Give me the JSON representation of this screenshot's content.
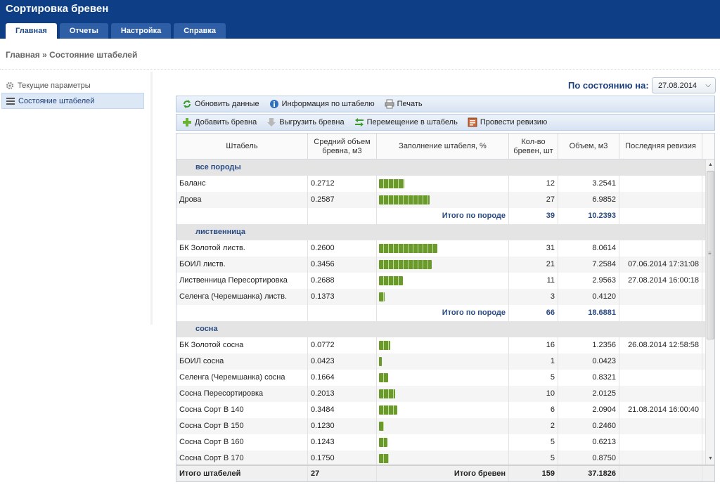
{
  "app": {
    "title": "Сортировка бревен"
  },
  "tabs": [
    {
      "label": "Главная",
      "active": true
    },
    {
      "label": "Отчеты",
      "active": false
    },
    {
      "label": "Настройка",
      "active": false
    },
    {
      "label": "Справка",
      "active": false
    }
  ],
  "breadcrumb": "Главная » Состояние штабелей",
  "sidebar": {
    "items": [
      {
        "label": "Текущие параметры",
        "icon": "gear-icon",
        "active": false
      },
      {
        "label": "Состояние штабелей",
        "icon": "list-icon",
        "active": true
      }
    ]
  },
  "date": {
    "label": "По состоянию на:",
    "value": "27.08.2014"
  },
  "toolbar1": {
    "refresh": "Обновить данные",
    "info": "Информация по штабелю",
    "print": "Печать"
  },
  "toolbar2": {
    "add": "Добавить бревна",
    "unload": "Выгрузить бревна",
    "move": "Перемещение в штабель",
    "audit": "Провести ревизию"
  },
  "columns": {
    "stack": "Штабель",
    "avg_volume": "Средний объем бревна, м3",
    "fill": "Заполнение штабеля, %",
    "count": "Кол-во бревен, шт",
    "volume": "Объем, м3",
    "last_audit": "Последняя ревизия"
  },
  "rows": [
    {
      "type": "group",
      "label": "все породы"
    },
    {
      "type": "data",
      "stack": "Баланс",
      "avg": "0.2712",
      "fill": 28,
      "count": "12",
      "volume": "3.2541",
      "audit": ""
    },
    {
      "type": "data",
      "stack": "Дрова",
      "avg": "0.2587",
      "fill": 55,
      "count": "27",
      "volume": "6.9852",
      "audit": ""
    },
    {
      "type": "subtotal",
      "label": "Итого по породе",
      "count": "39",
      "volume": "10.2393"
    },
    {
      "type": "group",
      "label": "лиственница"
    },
    {
      "type": "data",
      "stack": "БК Золотой листв.",
      "avg": "0.2600",
      "fill": 64,
      "count": "31",
      "volume": "8.0614",
      "audit": ""
    },
    {
      "type": "data",
      "stack": "БОИЛ листв.",
      "avg": "0.3456",
      "fill": 58,
      "count": "21",
      "volume": "7.2584",
      "audit": "07.06.2014 17:31:08"
    },
    {
      "type": "data",
      "stack": "Лиственница Пересортировка",
      "avg": "0.2688",
      "fill": 26,
      "count": "11",
      "volume": "2.9563",
      "audit": "27.08.2014 16:00:18"
    },
    {
      "type": "data",
      "stack": "Селенга (Черемшанка) листв.",
      "avg": "0.1373",
      "fill": 6,
      "count": "3",
      "volume": "0.4120",
      "audit": ""
    },
    {
      "type": "subtotal",
      "label": "Итого по породе",
      "count": "66",
      "volume": "18.6881"
    },
    {
      "type": "group",
      "label": "сосна"
    },
    {
      "type": "data",
      "stack": "БК Золотой сосна",
      "avg": "0.0772",
      "fill": 12,
      "count": "16",
      "volume": "1.2356",
      "audit": "26.08.2014 12:58:58"
    },
    {
      "type": "data",
      "stack": "БОИЛ сосна",
      "avg": "0.0423",
      "fill": 3,
      "count": "1",
      "volume": "0.0423",
      "audit": ""
    },
    {
      "type": "data",
      "stack": "Селенга (Черемшанка) сосна",
      "avg": "0.1664",
      "fill": 10,
      "count": "5",
      "volume": "0.8321",
      "audit": ""
    },
    {
      "type": "data",
      "stack": "Сосна Пересортировка",
      "avg": "0.2013",
      "fill": 18,
      "count": "10",
      "volume": "2.0125",
      "audit": ""
    },
    {
      "type": "data",
      "stack": "Сосна Сорт В 140",
      "avg": "0.3484",
      "fill": 20,
      "count": "6",
      "volume": "2.0904",
      "audit": "21.08.2014 16:00:40"
    },
    {
      "type": "data",
      "stack": "Сосна Сорт В 150",
      "avg": "0.1230",
      "fill": 5,
      "count": "2",
      "volume": "0.2460",
      "audit": ""
    },
    {
      "type": "data",
      "stack": "Сосна Сорт В 160",
      "avg": "0.1243",
      "fill": 9,
      "count": "5",
      "volume": "0.6213",
      "audit": ""
    },
    {
      "type": "data",
      "stack": "Сосна Сорт В 170",
      "avg": "0.1750",
      "fill": 11,
      "count": "5",
      "volume": "0.8750",
      "audit": ""
    }
  ],
  "footer": {
    "stacks_label": "Итого штабелей",
    "stacks_count": "27",
    "logs_label": "Итого бревен",
    "logs_count": "159",
    "total_volume": "37.1826"
  },
  "colors": {
    "header_bg": "#0d3e86",
    "accent_text": "#1b3f7a",
    "fill_bar": "#6a9a2c"
  }
}
